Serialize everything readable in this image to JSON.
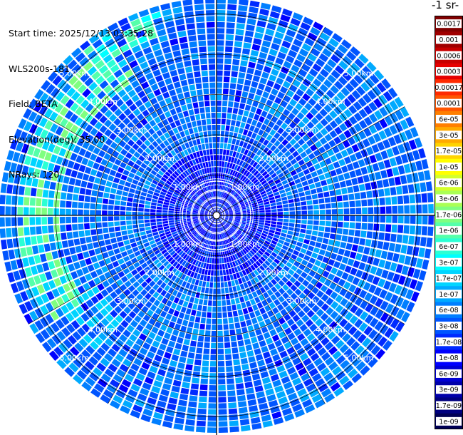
{
  "header": {
    "start_time": "Start time: 2025/12/13 03:35:28",
    "instrument": "WLS200s-181",
    "field": "Field: BETA",
    "elevation": "Elevation(deg): 35.00",
    "nrays": "NRays: 120"
  },
  "colorbar": {
    "unit_label": "-1 sr-",
    "labels": [
      "0.0017",
      "0.001",
      "0.0006",
      "0.0003",
      "0.00017",
      "0.0001",
      "6e-05",
      "3e-05",
      "1.7e-05",
      "1e-05",
      "6e-06",
      "3e-06",
      "1.7e-06",
      "1e-06",
      "6e-07",
      "3e-07",
      "1.7e-07",
      "1e-07",
      "6e-08",
      "3e-08",
      "1.7e-08",
      "1e-08",
      "6e-09",
      "3e-09",
      "1.7e-09",
      "1e-09"
    ],
    "colors": [
      "#800000",
      "#a00000",
      "#c80000",
      "#e60000",
      "#ff2a00",
      "#ff5500",
      "#ff7f00",
      "#ffaa00",
      "#ffd400",
      "#ffff00",
      "#d4ff2b",
      "#aaff55",
      "#7fff80",
      "#55ffaa",
      "#2bffd4",
      "#00ffff",
      "#00d4ff",
      "#00aaff",
      "#007fff",
      "#0055ff",
      "#002aff",
      "#0000ff",
      "#0000d4",
      "#0000aa",
      "#00007f",
      "#000055"
    ]
  },
  "chart_data": {
    "type": "heatmap",
    "title": "",
    "field": "BETA",
    "elevation_deg": 35.0,
    "n_rays": 120,
    "range_unit": "km",
    "range_max_km": 5.4,
    "range_rings_km": [
      1.0,
      2.0,
      3.0,
      4.0,
      5.0
    ],
    "ring_labels": [
      "1.00km",
      "2.00km",
      "3.00km",
      "4.00km",
      "5.00km"
    ],
    "value_range": [
      1e-09,
      0.0017
    ],
    "dominant_level": "3e-08",
    "notes_visible": "polar PPI scan, values mostly 1e-08 to 6e-08 with band of 3e-07 to 1e-06 in west sector near 4-5 km"
  }
}
